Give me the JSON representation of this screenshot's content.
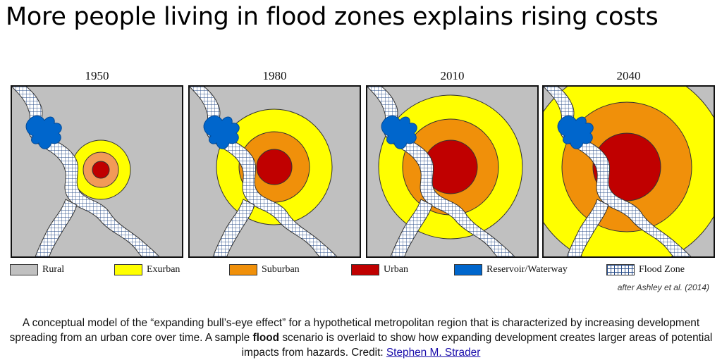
{
  "title": "More people living in flood zones explains rising costs",
  "panels": [
    {
      "year": "1950"
    },
    {
      "year": "1980"
    },
    {
      "year": "2010"
    },
    {
      "year": "2040"
    }
  ],
  "colors": {
    "rural": "#c0c0c0",
    "exurban": "#ffff00",
    "suburban": "#f0900a",
    "urban_1950": "#f29a58",
    "urban": "#c00000",
    "reservoir": "#0066cc",
    "flood_grid": "#2a4e8a"
  },
  "legend": [
    {
      "label": "Rural",
      "color": "#c0c0c0"
    },
    {
      "label": "Exurban",
      "color": "#ffff00"
    },
    {
      "label": "Suburban",
      "color": "#f0900a"
    },
    {
      "label": "Urban",
      "color": "#c00000"
    },
    {
      "label": "Reservoir/Waterway",
      "color": "#0066cc"
    },
    {
      "label": "Flood Zone",
      "color": "grid-pattern"
    }
  ],
  "attribution": "after Ashley et al. (2014)",
  "caption": {
    "part1": "A conceptual model of the “expanding bull’s-eye effect” for a hypothetical metropolitan region that is characterized by increasing development spreading from an urban core over time. A sample ",
    "bold_word": "flood",
    "part2": " scenario is overlaid to show how expanding development creates larger areas of potential impacts from hazards. Credit: ",
    "credit_link": "Stephen M. Strader"
  }
}
